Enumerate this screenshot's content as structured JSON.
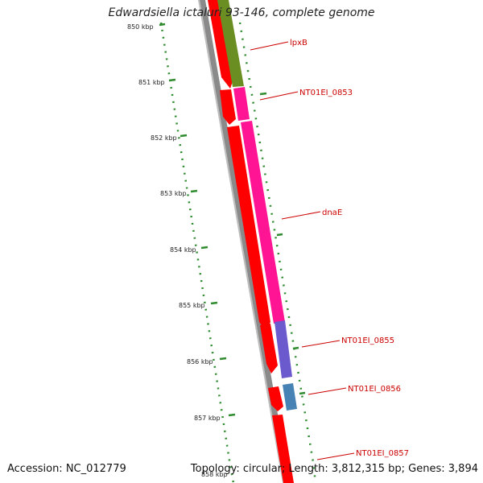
{
  "title": "Edwardsiella ictaluri 93-146, complete genome",
  "footer": {
    "accession": "Accession: NC_012779",
    "topology": "Topology: circular; Length: 3,812,315 bp; Genes: 3,894"
  },
  "colors": {
    "forward_gene": "#ff0000",
    "backbone": "#808080",
    "gene_label": "#cc0000",
    "tick": "#2e8b2e",
    "olive_feature": "#6b8e23",
    "pink_feature": "#ff1493",
    "purple_feature": "#6a5acd",
    "blue_feature": "#4682b4"
  },
  "ruler": {
    "unit": "kbp",
    "ticks": [
      {
        "value": 850,
        "label": "850 kbp"
      },
      {
        "value": 851,
        "label": "851 kbp"
      },
      {
        "value": 852,
        "label": "852 kbp"
      },
      {
        "value": 853,
        "label": "853 kbp"
      },
      {
        "value": 854,
        "label": "854 kbp"
      },
      {
        "value": 855,
        "label": "855 kbp"
      },
      {
        "value": 856,
        "label": "856 kbp"
      },
      {
        "value": 857,
        "label": "857 kbp"
      },
      {
        "value": 858,
        "label": "858 kbp"
      }
    ]
  },
  "genes": [
    {
      "name": "lpxB"
    },
    {
      "name": "NT01EI_0853"
    },
    {
      "name": "dnaE"
    },
    {
      "name": "NT01EI_0855"
    },
    {
      "name": "NT01EI_0856"
    },
    {
      "name": "NT01EI_0857"
    }
  ]
}
